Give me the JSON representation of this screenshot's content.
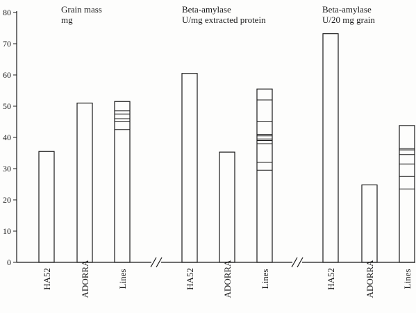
{
  "chart_data": {
    "type": "bar",
    "ylim": [
      0,
      80
    ],
    "yticks": [
      0,
      10,
      20,
      30,
      40,
      50,
      60,
      70,
      80
    ],
    "grid": false,
    "panels": [
      {
        "title": [
          "Grain mass",
          "mg"
        ],
        "categories": [
          "HA52",
          "ADORRA",
          "Lines"
        ],
        "values": [
          35.5,
          51,
          51.5
        ],
        "lines_marks": [
          42.5,
          45,
          46,
          47.5,
          48.5
        ]
      },
      {
        "title": [
          "Beta-amylase",
          "U/mg extracted protein"
        ],
        "categories": [
          "HA52",
          "ADORRA",
          "Lines"
        ],
        "values": [
          60.5,
          35.3,
          55.5
        ],
        "lines_marks": [
          29.5,
          32,
          38,
          39,
          39.5,
          40.5,
          41,
          45,
          52
        ]
      },
      {
        "title": [
          "Beta-amylase",
          "U/20 mg grain"
        ],
        "categories": [
          "HA52",
          "ADORRA",
          "Lines"
        ],
        "values": [
          73.2,
          24.8,
          43.8
        ],
        "lines_marks": [
          23.5,
          27.5,
          31.5,
          34.5,
          36,
          36.5
        ]
      }
    ]
  }
}
